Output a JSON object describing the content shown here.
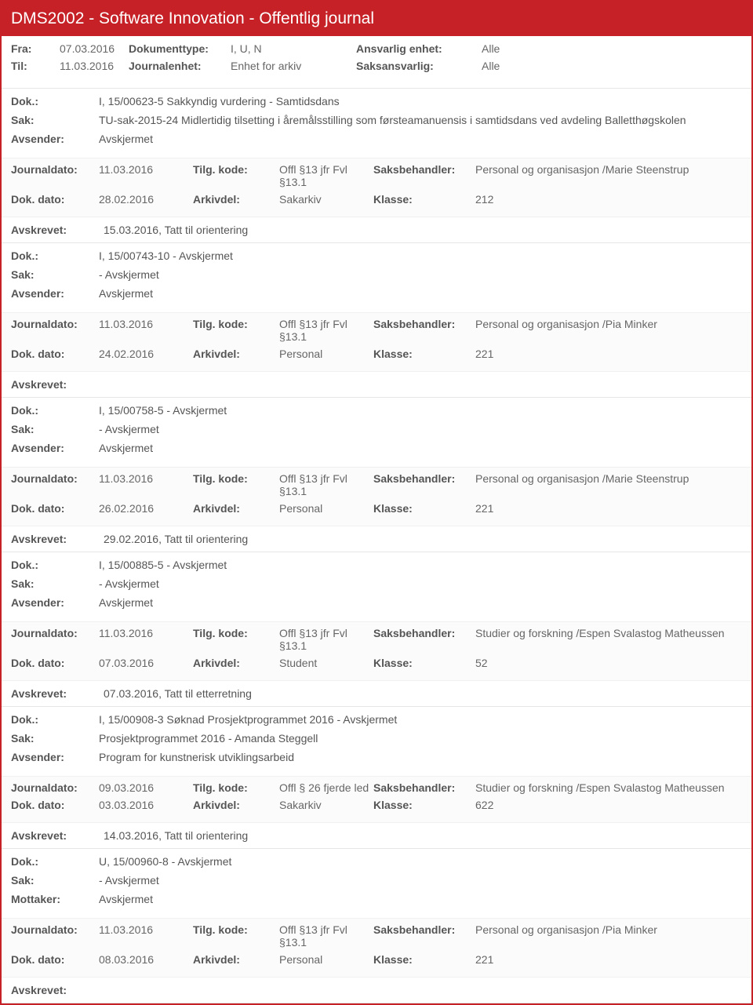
{
  "header": {
    "title": "DMS2002 - Software Innovation - Offentlig journal"
  },
  "meta": {
    "fra_label": "Fra:",
    "fra_value": "07.03.2016",
    "til_label": "Til:",
    "til_value": "11.03.2016",
    "doktype_label": "Dokumenttype:",
    "doktype_value": "I, U, N",
    "jenhet_label": "Journalenhet:",
    "jenhet_value": "Enhet for arkiv",
    "ansv_label": "Ansvarlig enhet:",
    "ansv_value": "Alle",
    "saksansv_label": "Saksansvarlig:",
    "saksansv_value": "Alle"
  },
  "labels": {
    "dok": "Dok.:",
    "sak": "Sak:",
    "avsender": "Avsender:",
    "mottaker": "Mottaker:",
    "journaldato": "Journaldato:",
    "tilgkode": "Tilg. kode:",
    "saksbeh": "Saksbehandler:",
    "dokdato": "Dok. dato:",
    "arkivdel": "Arkivdel:",
    "klasse": "Klasse:",
    "avskrevet": "Avskrevet:"
  },
  "records": [
    {
      "dok": "I, 15/00623-5 Sakkyndig vurdering  - Samtidsdans",
      "sak": "TU-sak-2015-24 Midlertidig tilsetting i åremålsstilling som førsteamanuensis i samtidsdans ved avdeling Balletthøgskolen",
      "party_label": "Avsender:",
      "party": "Avskjermet",
      "journaldato": "11.03.2016",
      "tilgkode": "Offl §13 jfr Fvl §13.1",
      "saksbeh": "Personal og organisasjon /Marie Steenstrup",
      "dokdato": "28.02.2016",
      "arkivdel": "Sakarkiv",
      "klasse": "212",
      "avskrevet": "15.03.2016, Tatt til orientering"
    },
    {
      "dok": "I, 15/00743-10 - Avskjermet",
      "sak": "- Avskjermet",
      "party_label": "Avsender:",
      "party": "Avskjermet",
      "journaldato": "11.03.2016",
      "tilgkode": "Offl §13 jfr Fvl §13.1",
      "saksbeh": "Personal og organisasjon /Pia Minker",
      "dokdato": "24.02.2016",
      "arkivdel": "Personal",
      "klasse": "221",
      "avskrevet": ""
    },
    {
      "dok": "I, 15/00758-5 - Avskjermet",
      "sak": "- Avskjermet",
      "party_label": "Avsender:",
      "party": "Avskjermet",
      "journaldato": "11.03.2016",
      "tilgkode": "Offl §13 jfr Fvl §13.1",
      "saksbeh": "Personal og organisasjon /Marie Steenstrup",
      "dokdato": "26.02.2016",
      "arkivdel": "Personal",
      "klasse": "221",
      "avskrevet": "29.02.2016, Tatt til orientering"
    },
    {
      "dok": "I, 15/00885-5 - Avskjermet",
      "sak": "- Avskjermet",
      "party_label": "Avsender:",
      "party": "Avskjermet",
      "journaldato": "11.03.2016",
      "tilgkode": "Offl §13 jfr Fvl §13.1",
      "saksbeh": "Studier og forskning /Espen Svalastog Matheussen",
      "dokdato": "07.03.2016",
      "arkivdel": "Student",
      "klasse": "52",
      "avskrevet": "07.03.2016, Tatt til etterretning"
    },
    {
      "dok": "I, 15/00908-3 Søknad Prosjektprogrammet 2016 - Avskjermet",
      "sak": "Prosjektprogrammet 2016 - Amanda Steggell",
      "party_label": "Avsender:",
      "party": "Program for kunstnerisk utviklingsarbeid",
      "journaldato": "09.03.2016",
      "tilgkode": "Offl § 26 fjerde led",
      "saksbeh": "Studier og forskning /Espen Svalastog Matheussen",
      "dokdato": "03.03.2016",
      "arkivdel": "Sakarkiv",
      "klasse": "622",
      "avskrevet": "14.03.2016, Tatt til orientering"
    },
    {
      "dok": "U, 15/00960-8 - Avskjermet",
      "sak": "- Avskjermet",
      "party_label": "Mottaker:",
      "party": "Avskjermet",
      "journaldato": "11.03.2016",
      "tilgkode": "Offl §13 jfr Fvl §13.1",
      "saksbeh": "Personal og organisasjon /Pia Minker",
      "dokdato": "08.03.2016",
      "arkivdel": "Personal",
      "klasse": "221",
      "avskrevet": ""
    }
  ]
}
